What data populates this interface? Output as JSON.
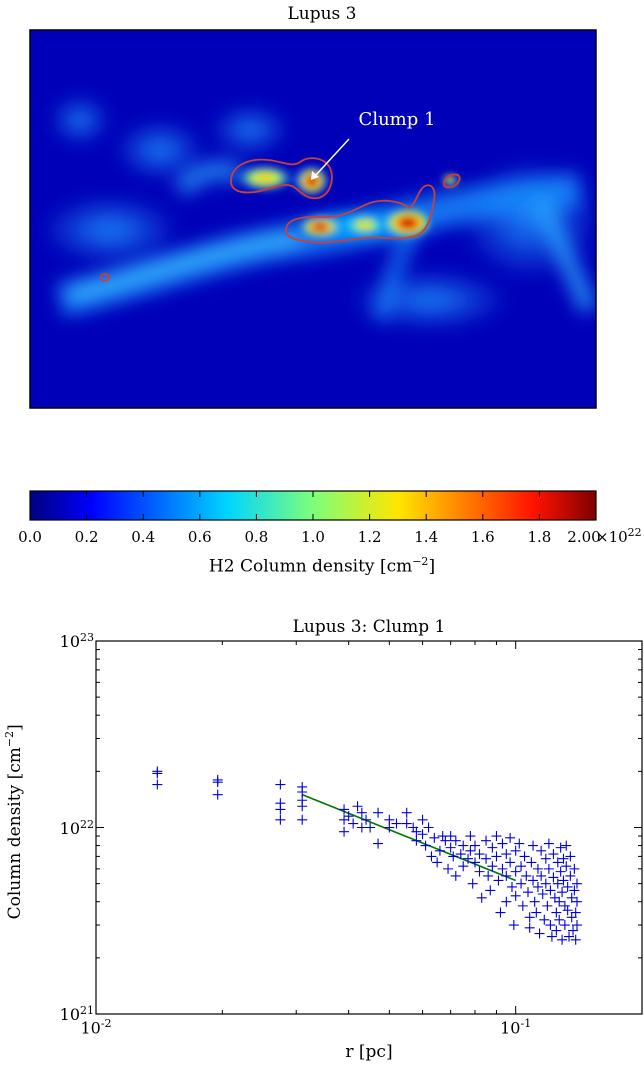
{
  "map": {
    "title": "Lupus 3",
    "annotation": "Clump 1",
    "colors": {
      "contour": "#c8403c",
      "annotation": "#ffffff"
    }
  },
  "colorbar": {
    "label_html": "H2 Column density [cm<sup>−2</sup>]",
    "ticks": [
      "0.0",
      "0.2",
      "0.4",
      "0.6",
      "0.8",
      "1.0",
      "1.2",
      "1.4",
      "1.6",
      "1.8",
      "2.00"
    ],
    "exponent_html": "×10<sup>22</sup>",
    "colormap": "jet",
    "range": [
      0.0,
      2.0
    ]
  },
  "chart_data": {
    "type": "scatter",
    "title": "Lupus 3: Clump 1",
    "xlabel": "r [pc]",
    "ylabel_html": "Column density [cm<sup>−2</sup>]",
    "x_scale": "log",
    "y_scale": "log",
    "xlim": [
      0.01,
      0.2
    ],
    "ylim": [
      1e+21,
      1e+23
    ],
    "x_tick_labels_html": [
      "10<sup>-2</sup>",
      "10<sup>-1</sup>"
    ],
    "y_tick_labels_html": [
      "10<sup>21</sup>",
      "10<sup>22</sup>",
      "10<sup>23</sup>"
    ],
    "grid": false,
    "marker": "+",
    "colors": {
      "points": "#0000dd",
      "fit": "#007700"
    },
    "fit_line": {
      "x": [
        0.031,
        0.1
      ],
      "y": [
        1.5e+22,
        5.2e+21
      ]
    },
    "points": [
      [
        0.014,
        2e+22
      ],
      [
        0.014,
        1.95e+22
      ],
      [
        0.014,
        1.7e+22
      ],
      [
        0.0195,
        1.8e+22
      ],
      [
        0.0195,
        1.75e+22
      ],
      [
        0.0195,
        1.5e+22
      ],
      [
        0.0275,
        1.7e+22
      ],
      [
        0.0275,
        1.35e+22
      ],
      [
        0.0275,
        1.25e+22
      ],
      [
        0.0275,
        1.1e+22
      ],
      [
        0.031,
        1.65e+22
      ],
      [
        0.031,
        1.55e+22
      ],
      [
        0.031,
        1.4e+22
      ],
      [
        0.031,
        1.3e+22
      ],
      [
        0.031,
        1.1e+22
      ],
      [
        0.039,
        1.25e+22
      ],
      [
        0.039,
        1.1e+22
      ],
      [
        0.039,
        9.5e+21
      ],
      [
        0.04,
        1.15e+22
      ],
      [
        0.041,
        1.05e+22
      ],
      [
        0.042,
        1.3e+22
      ],
      [
        0.043,
        1.2e+22
      ],
      [
        0.043,
        1e+22
      ],
      [
        0.044,
        1.1e+22
      ],
      [
        0.045,
        1e+22
      ],
      [
        0.047,
        1.2e+22
      ],
      [
        0.047,
        8.2e+21
      ],
      [
        0.05,
        1.1e+22
      ],
      [
        0.05,
        1e+22
      ],
      [
        0.052,
        1.05e+22
      ],
      [
        0.055,
        1.2e+22
      ],
      [
        0.055,
        1.05e+22
      ],
      [
        0.057,
        1e+22
      ],
      [
        0.058,
        9.5e+21
      ],
      [
        0.058,
        8.5e+21
      ],
      [
        0.06,
        1.1e+22
      ],
      [
        0.06,
        9.2e+21
      ],
      [
        0.061,
        8e+21
      ],
      [
        0.062,
        1e+22
      ],
      [
        0.063,
        7e+21
      ],
      [
        0.064,
        8.8e+21
      ],
      [
        0.065,
        6.5e+21
      ],
      [
        0.066,
        7.5e+21
      ],
      [
        0.067,
        9e+21
      ],
      [
        0.068,
        8.5e+21
      ],
      [
        0.069,
        6e+21
      ],
      [
        0.07,
        9e+21
      ],
      [
        0.07,
        7.8e+21
      ],
      [
        0.071,
        7e+21
      ],
      [
        0.072,
        8.5e+21
      ],
      [
        0.072,
        5.5e+21
      ],
      [
        0.074,
        7.2e+21
      ],
      [
        0.075,
        8e+21
      ],
      [
        0.075,
        6.2e+21
      ],
      [
        0.077,
        6.8e+21
      ],
      [
        0.078,
        9e+21
      ],
      [
        0.078,
        7.5e+21
      ],
      [
        0.079,
        5e+21
      ],
      [
        0.08,
        8e+21
      ],
      [
        0.08,
        6.5e+21
      ],
      [
        0.082,
        7.2e+21
      ],
      [
        0.082,
        5.8e+21
      ],
      [
        0.083,
        4.2e+21
      ],
      [
        0.085,
        8.5e+21
      ],
      [
        0.085,
        6.8e+21
      ],
      [
        0.086,
        5.5e+21
      ],
      [
        0.087,
        4.6e+21
      ],
      [
        0.088,
        7.8e+21
      ],
      [
        0.088,
        6.2e+21
      ],
      [
        0.09,
        9e+21
      ],
      [
        0.09,
        7e+21
      ],
      [
        0.091,
        5.2e+21
      ],
      [
        0.092,
        3.5e+21
      ],
      [
        0.093,
        8.2e+21
      ],
      [
        0.093,
        6e+21
      ],
      [
        0.095,
        7.2e+21
      ],
      [
        0.095,
        5.5e+21
      ],
      [
        0.095,
        4e+21
      ],
      [
        0.097,
        8.8e+21
      ],
      [
        0.097,
        6.5e+21
      ],
      [
        0.098,
        4.8e+21
      ],
      [
        0.099,
        3e+21
      ],
      [
        0.1,
        7.5e+21
      ],
      [
        0.1,
        5.8e+21
      ],
      [
        0.1,
        4.3e+21
      ],
      [
        0.102,
        8.2e+21
      ],
      [
        0.103,
        6.2e+21
      ],
      [
        0.103,
        5e+21
      ],
      [
        0.104,
        3.8e+21
      ],
      [
        0.105,
        7e+21
      ],
      [
        0.106,
        5.5e+21
      ],
      [
        0.107,
        4.5e+21
      ],
      [
        0.108,
        3.3e+21
      ],
      [
        0.108,
        2.9e+21
      ],
      [
        0.109,
        6.5e+21
      ],
      [
        0.11,
        8e+21
      ],
      [
        0.11,
        5.2e+21
      ],
      [
        0.111,
        4e+21
      ],
      [
        0.112,
        3.5e+21
      ],
      [
        0.113,
        6e+21
      ],
      [
        0.113,
        4.8e+21
      ],
      [
        0.114,
        2.7e+21
      ],
      [
        0.115,
        7.5e+21
      ],
      [
        0.115,
        5.5e+21
      ],
      [
        0.116,
        4.4e+21
      ],
      [
        0.117,
        3.2e+21
      ],
      [
        0.118,
        6.8e+21
      ],
      [
        0.118,
        5e+21
      ],
      [
        0.119,
        3.8e+21
      ],
      [
        0.12,
        8.2e+21
      ],
      [
        0.12,
        6e+21
      ],
      [
        0.121,
        4.6e+21
      ],
      [
        0.121,
        3e+21
      ],
      [
        0.122,
        2.6e+21
      ],
      [
        0.123,
        7.2e+21
      ],
      [
        0.123,
        5.4e+21
      ],
      [
        0.124,
        4.2e+21
      ],
      [
        0.125,
        3.5e+21
      ],
      [
        0.125,
        2.8e+21
      ],
      [
        0.126,
        6.5e+21
      ],
      [
        0.126,
        5e+21
      ],
      [
        0.127,
        4e+21
      ],
      [
        0.127,
        3.2e+21
      ],
      [
        0.128,
        7.8e+21
      ],
      [
        0.128,
        5.8e+21
      ],
      [
        0.129,
        4.5e+21
      ],
      [
        0.129,
        2.5e+21
      ],
      [
        0.13,
        6.8e+21
      ],
      [
        0.13,
        5.2e+21
      ],
      [
        0.131,
        3.8e+21
      ],
      [
        0.131,
        3e+21
      ],
      [
        0.132,
        8e+21
      ],
      [
        0.132,
        6.2e+21
      ],
      [
        0.133,
        4.8e+21
      ],
      [
        0.133,
        3.6e+21
      ],
      [
        0.134,
        2.6e+21
      ],
      [
        0.135,
        7e+21
      ],
      [
        0.135,
        5.5e+21
      ],
      [
        0.136,
        4.2e+21
      ],
      [
        0.136,
        3.3e+21
      ],
      [
        0.137,
        2.8e+21
      ],
      [
        0.138,
        6e+21
      ],
      [
        0.138,
        4.6e+21
      ],
      [
        0.139,
        3.5e+21
      ],
      [
        0.139,
        2.5e+21
      ],
      [
        0.14,
        5e+21
      ],
      [
        0.14,
        4e+21
      ],
      [
        0.14,
        3e+21
      ]
    ]
  }
}
